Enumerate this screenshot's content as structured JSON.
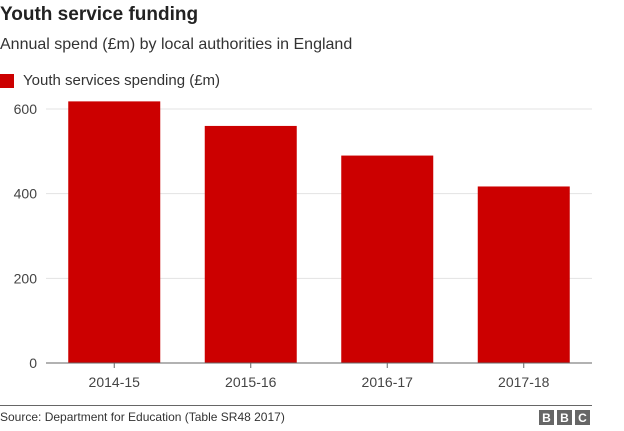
{
  "header": {
    "title": "Youth service funding",
    "subtitle": "Annual spend (£m) by local authorities in England"
  },
  "legend": {
    "label": "Youth services spending (£m)",
    "color": "#cc0000"
  },
  "chart_data": {
    "type": "bar",
    "categories": [
      "2014-15",
      "2015-16",
      "2016-17",
      "2017-18"
    ],
    "series": [
      {
        "name": "Youth services spending (£m)",
        "values": [
          618,
          560,
          490,
          417
        ]
      }
    ],
    "ylim": [
      0,
      600
    ],
    "yticks": [
      "0",
      "200",
      "400",
      "600"
    ],
    "grid": true,
    "legend_position": "top-left",
    "bar_color": "#cc0000"
  },
  "footer": {
    "source": "Source: Department for Education (Table SR48 2017)",
    "logo_letters": [
      "B",
      "B",
      "C"
    ]
  }
}
